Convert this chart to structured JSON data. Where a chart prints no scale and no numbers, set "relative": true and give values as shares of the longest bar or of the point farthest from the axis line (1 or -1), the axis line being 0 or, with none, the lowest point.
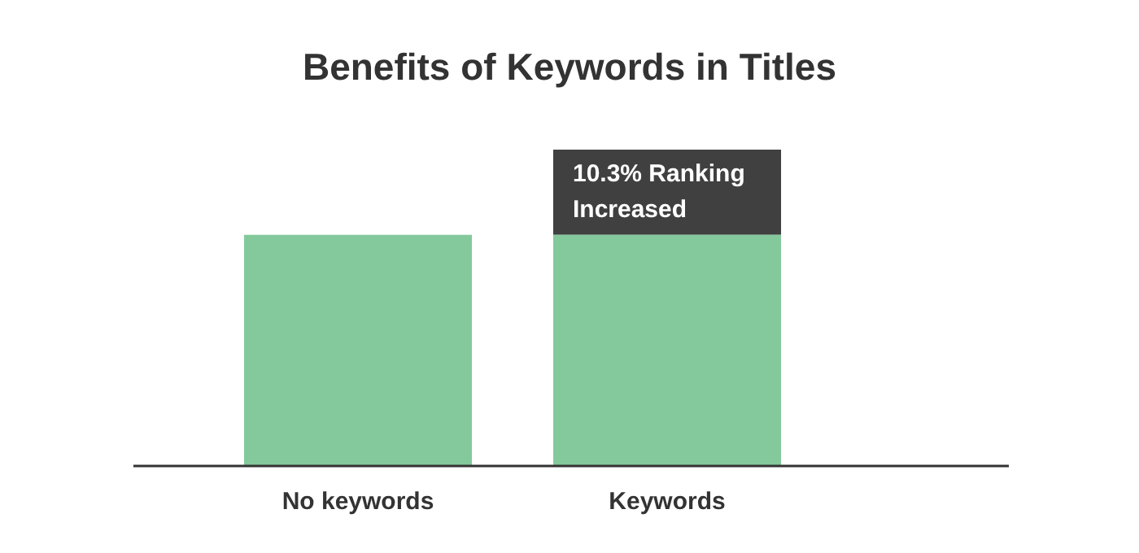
{
  "chart_data": {
    "type": "bar",
    "title": "Benefits of Keywords in Titles",
    "categories": [
      "No keywords",
      "Keywords"
    ],
    "relative": true,
    "stacked": true,
    "grid": false,
    "legend": false,
    "series": [
      {
        "color": "#84c99b",
        "values": [
          0.73,
          0.73
        ]
      },
      {
        "color": "#404040",
        "values": [
          null,
          0.27
        ]
      }
    ],
    "annotations": [
      "10.3% Ranking Increased"
    ]
  }
}
